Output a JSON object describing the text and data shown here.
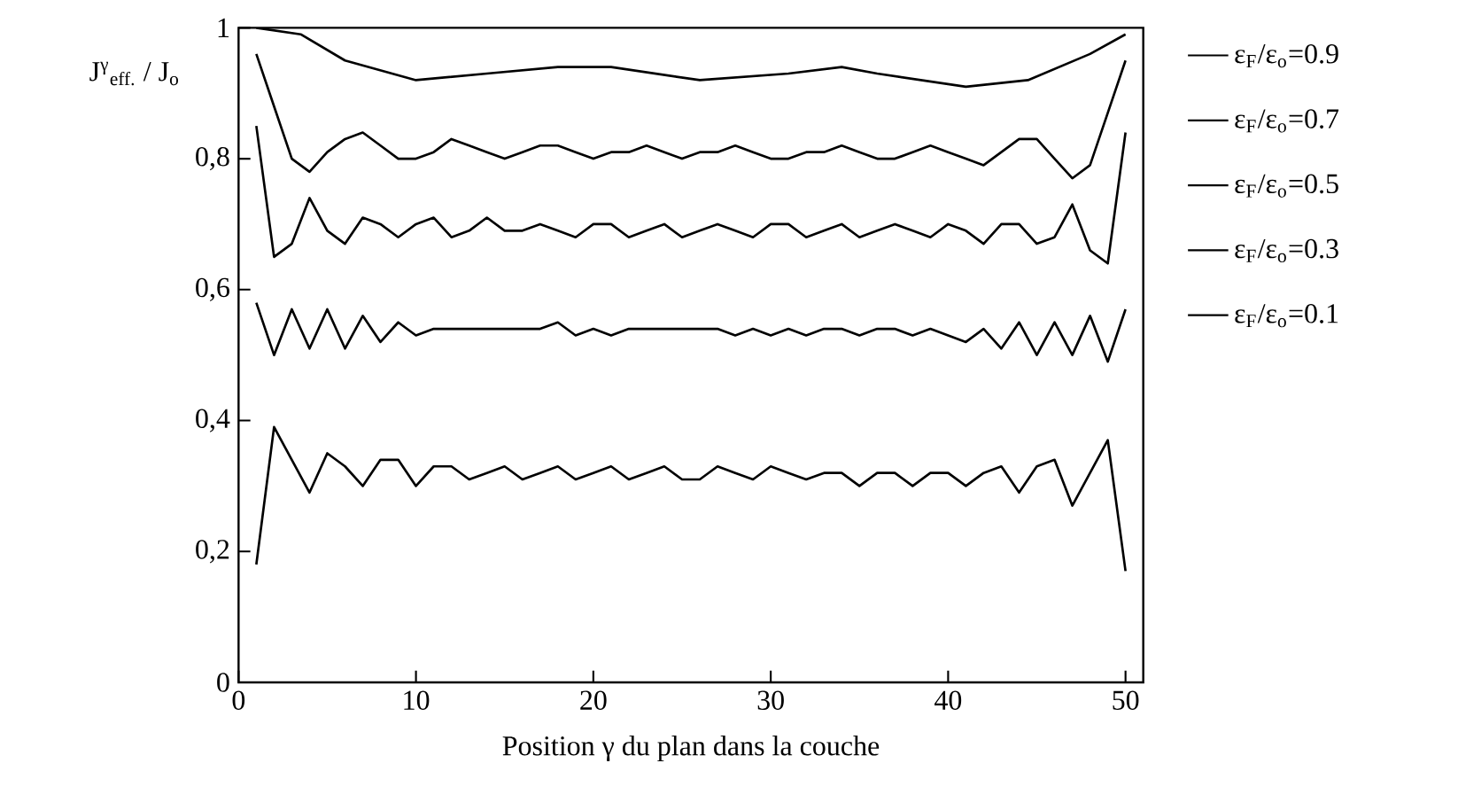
{
  "chart_data": {
    "type": "line",
    "xlabel": "Position γ du plan dans la couche",
    "ylabel": "J$^{γ}$$_{eff.}$ / J$_{o}$",
    "xlim": [
      0,
      51
    ],
    "ylim": [
      0,
      1
    ],
    "xticks": [
      0,
      10,
      20,
      30,
      40,
      50
    ],
    "yticks": [
      0,
      {
        "value": 0.2,
        "label": "0,2"
      },
      {
        "value": 0.4,
        "label": "0,4"
      },
      {
        "value": 0.6,
        "label": "0,6"
      },
      {
        "value": 0.8,
        "label": "0,8"
      },
      1
    ],
    "legend": "right",
    "marker": "none",
    "line_style": "solid",
    "x": [
      1,
      2,
      3,
      4,
      5,
      6,
      7,
      8,
      9,
      10,
      11,
      12,
      13,
      14,
      15,
      16,
      17,
      18,
      19,
      20,
      21,
      22,
      23,
      24,
      25,
      26,
      27,
      28,
      29,
      30,
      31,
      32,
      33,
      34,
      35,
      36,
      37,
      38,
      39,
      40,
      41,
      42,
      43,
      44,
      45,
      46,
      47,
      48,
      49,
      50
    ],
    "series": [
      {
        "name": "ε$_{F}$/ε$_{o}$=0.9",
        "color": "#000000",
        "x": [
          1,
          3.5,
          6,
          10,
          14,
          18,
          21,
          26,
          31,
          34,
          36,
          41,
          44.5,
          48,
          50
        ],
        "values": [
          1.0,
          0.99,
          0.95,
          0.92,
          0.93,
          0.94,
          0.94,
          0.92,
          0.93,
          0.94,
          0.93,
          0.91,
          0.92,
          0.96,
          0.99
        ]
      },
      {
        "name": "ε$_{F}$/ε$_{o}$=0.7",
        "color": "#000000",
        "values": [
          0.96,
          0.88,
          0.8,
          0.78,
          0.81,
          0.83,
          0.84,
          0.82,
          0.8,
          0.8,
          0.81,
          0.83,
          0.82,
          0.81,
          0.8,
          0.81,
          0.82,
          0.82,
          0.81,
          0.8,
          0.81,
          0.81,
          0.82,
          0.81,
          0.8,
          0.81,
          0.81,
          0.82,
          0.81,
          0.8,
          0.8,
          0.81,
          0.81,
          0.82,
          0.81,
          0.8,
          0.8,
          0.81,
          0.82,
          0.81,
          0.8,
          0.79,
          0.81,
          0.83,
          0.83,
          0.8,
          0.77,
          0.79,
          0.87,
          0.95
        ]
      },
      {
        "name": "ε$_{F}$/ε$_{o}$=0.5",
        "color": "#000000",
        "values": [
          0.85,
          0.65,
          0.67,
          0.74,
          0.69,
          0.67,
          0.71,
          0.7,
          0.68,
          0.7,
          0.71,
          0.68,
          0.69,
          0.71,
          0.69,
          0.69,
          0.7,
          0.69,
          0.68,
          0.7,
          0.7,
          0.68,
          0.69,
          0.7,
          0.68,
          0.69,
          0.7,
          0.69,
          0.68,
          0.7,
          0.7,
          0.68,
          0.69,
          0.7,
          0.68,
          0.69,
          0.7,
          0.69,
          0.68,
          0.7,
          0.69,
          0.67,
          0.7,
          0.7,
          0.67,
          0.68,
          0.73,
          0.66,
          0.64,
          0.84
        ]
      },
      {
        "name": "ε$_{F}$/ε$_{o}$=0.3",
        "color": "#000000",
        "values": [
          0.58,
          0.5,
          0.57,
          0.51,
          0.57,
          0.51,
          0.56,
          0.52,
          0.55,
          0.53,
          0.54,
          0.54,
          0.54,
          0.54,
          0.54,
          0.54,
          0.54,
          0.55,
          0.53,
          0.54,
          0.53,
          0.54,
          0.54,
          0.54,
          0.54,
          0.54,
          0.54,
          0.53,
          0.54,
          0.53,
          0.54,
          0.53,
          0.54,
          0.54,
          0.53,
          0.54,
          0.54,
          0.53,
          0.54,
          0.53,
          0.52,
          0.54,
          0.51,
          0.55,
          0.5,
          0.55,
          0.5,
          0.56,
          0.49,
          0.57
        ]
      },
      {
        "name": "ε$_{F}$/ε$_{o}$=0.1",
        "color": "#000000",
        "values": [
          0.18,
          0.39,
          0.34,
          0.29,
          0.35,
          0.33,
          0.3,
          0.34,
          0.34,
          0.3,
          0.33,
          0.33,
          0.31,
          0.32,
          0.33,
          0.31,
          0.32,
          0.33,
          0.31,
          0.32,
          0.33,
          0.31,
          0.32,
          0.33,
          0.31,
          0.31,
          0.33,
          0.32,
          0.31,
          0.33,
          0.32,
          0.31,
          0.32,
          0.32,
          0.3,
          0.32,
          0.32,
          0.3,
          0.32,
          0.32,
          0.3,
          0.32,
          0.33,
          0.29,
          0.33,
          0.34,
          0.27,
          0.32,
          0.37,
          0.17
        ]
      }
    ]
  }
}
